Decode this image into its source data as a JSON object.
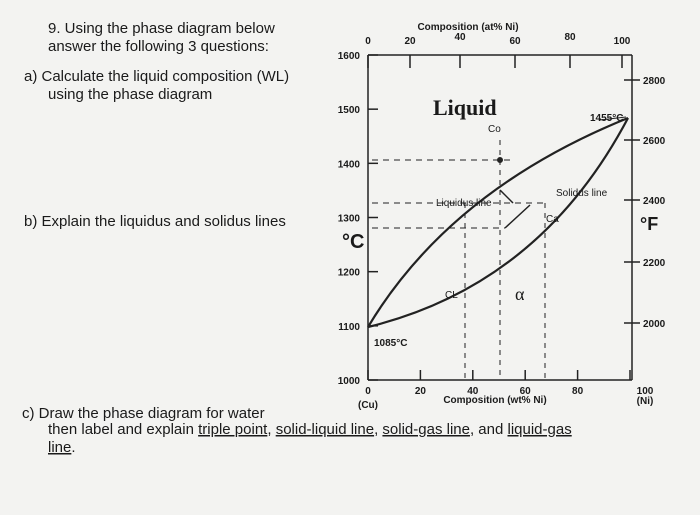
{
  "questions": {
    "intro": [
      "9. Using the phase diagram below",
      "answer the following 3 questions:"
    ],
    "a": [
      "a) Calculate the liquid composition (WL)",
      "using the phase diagram"
    ],
    "b": "b) Explain the liquidus and solidus lines",
    "c": {
      "line1": "c) Draw the phase diagram for water",
      "line2": [
        "then label and explain ",
        "triple point",
        ", ",
        "solid-liquid line",
        ", ",
        "solid-gas line",
        ", and ",
        "liquid-gas"
      ],
      "line3": [
        "line",
        "."
      ]
    }
  },
  "diagram": {
    "top_axis_title": "Composition (at% Ni)",
    "top_ticks": [
      0,
      20,
      40,
      60,
      80,
      100
    ],
    "bottom_ticks": [
      0,
      20,
      40,
      60,
      80,
      100
    ],
    "bottom_ends": [
      "(Cu)",
      "(Ni)"
    ],
    "bottom_axis_title": "Composition (wt% Ni)",
    "celsius_ticks": [
      1600,
      1500,
      1400,
      1300,
      1200,
      1100,
      1000
    ],
    "celsius_unit": "°C",
    "fahrenheit_ticks": [
      2800,
      2600,
      2400,
      2200,
      2000
    ],
    "fahrenheit_unit": "°F",
    "labels": {
      "liquid": "Liquid",
      "co": "Co",
      "melt_ni": "1455°C",
      "melt_cu": "1085°C",
      "liquidus": "Liquidus line",
      "solidus": "Solidus line",
      "ca": "Ca",
      "cl": "CL",
      "alpha": "α"
    }
  }
}
